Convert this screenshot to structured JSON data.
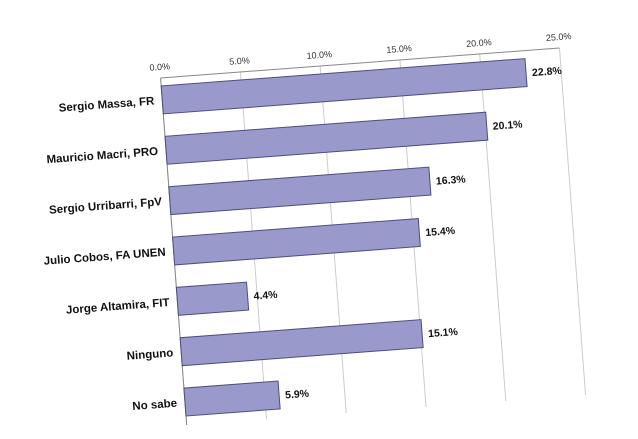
{
  "chart_data": {
    "type": "bar",
    "orientation": "horizontal",
    "categories": [
      "Sergio Massa, FR",
      "Mauricio Macri, PRO",
      "Sergio Urribarri, FpV",
      "Julio Cobos, FA UNEN",
      "Jorge Altamira, FIT",
      "Ninguno",
      "No sabe"
    ],
    "values": [
      22.8,
      20.1,
      16.3,
      15.4,
      4.4,
      15.1,
      5.9
    ],
    "data_labels": [
      "22.8%",
      "20.1%",
      "16.3%",
      "15.4%",
      "4.4%",
      "15.1%",
      "5.9%"
    ],
    "x_ticks": [
      0,
      5,
      10,
      15,
      20,
      25
    ],
    "x_tick_labels": [
      "0.0%",
      "5.0%",
      "10.0%",
      "15.0%",
      "20.0%",
      "25.0%"
    ],
    "xlim": [
      0,
      25
    ],
    "x_axis_position": "top",
    "grid": true,
    "colors": {
      "bar_fill": "#9999cc",
      "bar_stroke": "#4d4d80",
      "grid": "#cccccc",
      "axis": "#888888"
    }
  }
}
